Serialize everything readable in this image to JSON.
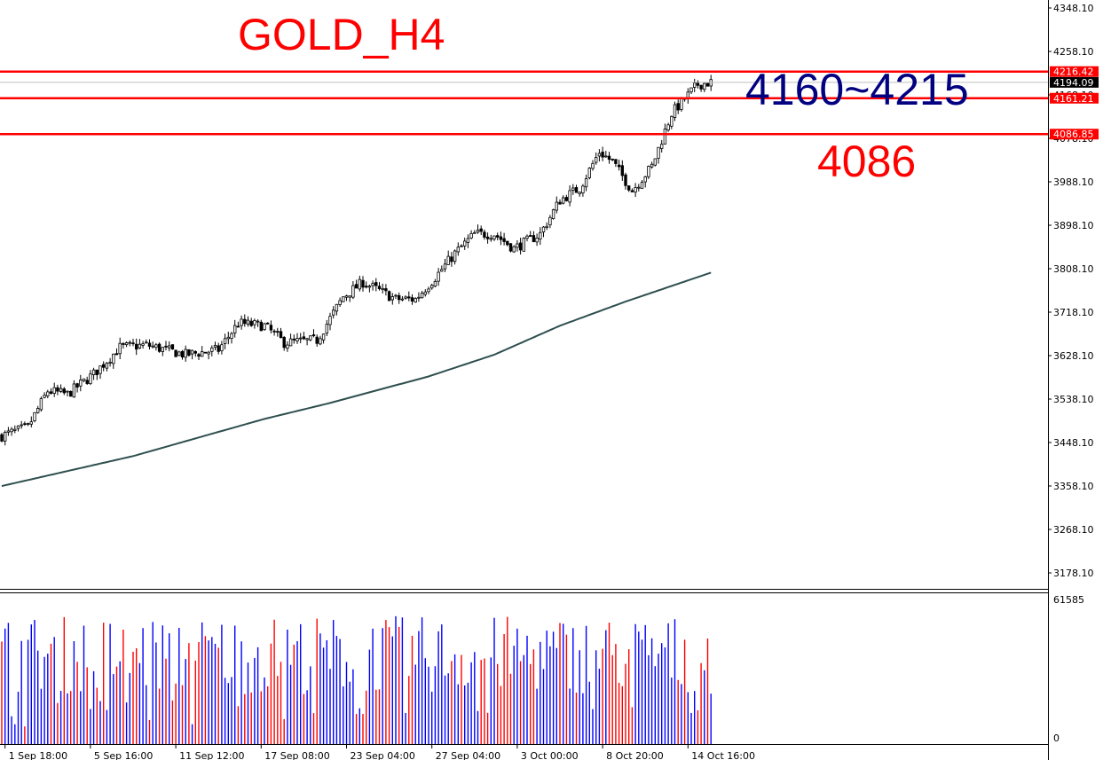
{
  "chart_data": {
    "type": "candlestick",
    "title": "GOLD_H4",
    "price_axis": {
      "min": 3130,
      "max": 4350,
      "ticks": [
        "4348.10",
        "4258.10",
        "4168.10",
        "4078.10",
        "3988.10",
        "3898.10",
        "3808.10",
        "3718.10",
        "3628.10",
        "3538.10",
        "3448.10",
        "3358.10",
        "3268.10",
        "3178.10"
      ]
    },
    "time_axis": {
      "labels": [
        "1 Sep 18:00",
        "5 Sep 16:00",
        "11 Sep 12:00",
        "17 Sep 08:00",
        "23 Sep 04:00",
        "27 Sep 04:00",
        "3 Oct 00:00",
        "8 Oct 20:00",
        "14 Oct 16:00"
      ],
      "label_bar_index": [
        1,
        27,
        53,
        79,
        105,
        131,
        157,
        183,
        209
      ]
    },
    "bar_count": 217,
    "close_anchors": [
      [
        0,
        3462
      ],
      [
        8,
        3480
      ],
      [
        14,
        3555
      ],
      [
        20,
        3548
      ],
      [
        28,
        3590
      ],
      [
        36,
        3645
      ],
      [
        44,
        3650
      ],
      [
        56,
        3630
      ],
      [
        66,
        3640
      ],
      [
        72,
        3695
      ],
      [
        80,
        3690
      ],
      [
        86,
        3655
      ],
      [
        96,
        3660
      ],
      [
        104,
        3750
      ],
      [
        110,
        3780
      ],
      [
        120,
        3745
      ],
      [
        126,
        3745
      ],
      [
        132,
        3790
      ],
      [
        138,
        3840
      ],
      [
        144,
        3880
      ],
      [
        150,
        3880
      ],
      [
        156,
        3850
      ],
      [
        164,
        3880
      ],
      [
        170,
        3950
      ],
      [
        176,
        3975
      ],
      [
        182,
        4050
      ],
      [
        186,
        4030
      ],
      [
        192,
        3970
      ],
      [
        198,
        4020
      ],
      [
        204,
        4130
      ],
      [
        208,
        4160
      ],
      [
        212,
        4190
      ],
      [
        216,
        4194
      ]
    ],
    "ma_anchors": [
      [
        0,
        3358
      ],
      [
        40,
        3420
      ],
      [
        80,
        3497
      ],
      [
        100,
        3530
      ],
      [
        130,
        3585
      ],
      [
        150,
        3630
      ],
      [
        170,
        3690
      ],
      [
        190,
        3740
      ],
      [
        216,
        3800
      ]
    ],
    "volume": {
      "max_label": "61585",
      "zero_label": "0",
      "max": 61585,
      "up_color": "#0000ff",
      "down_color": "#ff0000"
    },
    "horizontal_lines": [
      {
        "price": 4216.42,
        "label": "4216.42",
        "color": "#ff0000"
      },
      {
        "price": 4161.21,
        "label": "4161.21",
        "color": "#ff0000"
      },
      {
        "price": 4086.85,
        "label": "4086.85",
        "color": "#ff0000"
      }
    ],
    "current_price": {
      "price": 4194.09,
      "label": "4194.09"
    },
    "annotations": [
      {
        "text": "GOLD_H4",
        "color": "#ff0000"
      },
      {
        "text": "4160~4215",
        "color": "#000080"
      },
      {
        "text": "4086",
        "color": "#ff0000"
      }
    ],
    "colors": {
      "candle": "#000000",
      "ma_line": "#2f4f4f",
      "level_line": "#ff0000",
      "current_line": "#c0c0c0",
      "axis": "#000000"
    }
  }
}
